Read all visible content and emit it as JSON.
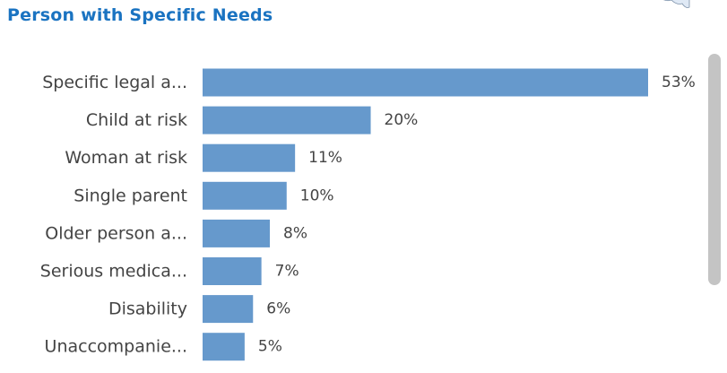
{
  "panel": {
    "title": "Person with Specific Needs"
  },
  "chart_data": {
    "type": "bar",
    "orientation": "horizontal",
    "categories": [
      "Specific legal a...",
      "Child at risk",
      "Woman at risk",
      "Single parent",
      "Older person a...",
      "Serious medica...",
      "Disability",
      "Unaccompanie..."
    ],
    "values": [
      53,
      20,
      11,
      10,
      8,
      7,
      6,
      5
    ],
    "data_labels": [
      "53%",
      "20%",
      "11%",
      "10%",
      "8%",
      "7%",
      "6%",
      "5%"
    ],
    "unit": "%",
    "xlim": [
      0,
      53
    ],
    "bar_color": "#6699cc",
    "title": "Person with Specific Needs",
    "xlabel": "",
    "ylabel": "",
    "grid": false,
    "legend": "none"
  },
  "colors": {
    "title": "#1a73c1",
    "bar": "#6699cc",
    "label": "#444444",
    "scrollbar": "#c4c4c4"
  },
  "icons": {
    "map_thumbnail": "map-icon"
  }
}
